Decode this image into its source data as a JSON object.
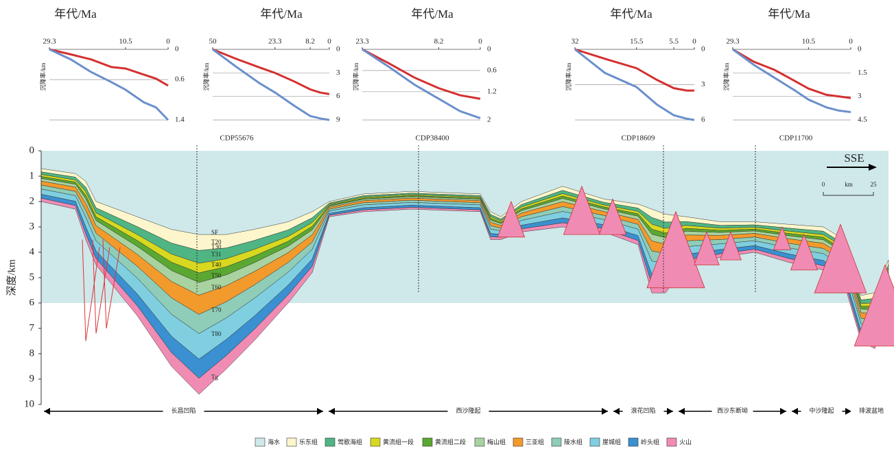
{
  "chart_data": [
    {
      "type": "line",
      "title": "年代/Ma",
      "y_label": "沉降率/km",
      "xlim": [
        29.3,
        0
      ],
      "xticks": [
        29.3,
        10.5,
        0
      ],
      "ylim": [
        0,
        1.4
      ],
      "yticks": [
        0,
        0.6,
        1.4
      ],
      "x": [
        29.3,
        24,
        19,
        14,
        10.5,
        6,
        3,
        0
      ],
      "series": [
        {
          "color": "#d43030",
          "values": [
            0,
            0.1,
            0.2,
            0.35,
            0.38,
            0.5,
            0.58,
            0.72
          ]
        },
        {
          "color": "#6a8fcc",
          "values": [
            0,
            0.2,
            0.45,
            0.65,
            0.8,
            1.05,
            1.15,
            1.4
          ]
        }
      ]
    },
    {
      "type": "line",
      "title": "年代/Ma",
      "y_label": "沉降率/km",
      "xlim": [
        50,
        0
      ],
      "xticks": [
        50,
        23.3,
        8.2,
        0
      ],
      "ylim": [
        0,
        9
      ],
      "yticks": [
        0,
        3,
        6,
        9
      ],
      "x": [
        50,
        40,
        30,
        23.3,
        15,
        8.2,
        4,
        0
      ],
      "series": [
        {
          "color": "#d43030",
          "values": [
            0,
            1.2,
            2.3,
            3,
            4.1,
            5.1,
            5.5,
            5.7
          ]
        },
        {
          "color": "#6a8fcc",
          "values": [
            0,
            2.2,
            4.3,
            5.5,
            7.2,
            8.5,
            8.8,
            9
          ]
        }
      ]
    },
    {
      "type": "line",
      "title": "年代/Ma",
      "y_label": "沉降率/km",
      "xlim": [
        23.3,
        0
      ],
      "xticks": [
        23.3,
        8.2,
        0
      ],
      "ylim": [
        0,
        2
      ],
      "yticks": [
        0,
        0.6,
        1.2,
        2
      ],
      "x": [
        23.3,
        18,
        13,
        8.2,
        4,
        0
      ],
      "series": [
        {
          "color": "#d43030",
          "values": [
            0,
            0.4,
            0.8,
            1.1,
            1.3,
            1.4
          ]
        },
        {
          "color": "#6a8fcc",
          "values": [
            0,
            0.5,
            1.0,
            1.4,
            1.75,
            1.95
          ]
        }
      ]
    },
    {
      "type": "line",
      "title": "年代/Ma",
      "y_label": "沉降率/km",
      "xlim": [
        32,
        0
      ],
      "xticks": [
        32,
        15.5,
        5.5,
        0
      ],
      "ylim": [
        0,
        6
      ],
      "yticks": [
        0,
        3,
        6
      ],
      "x": [
        32,
        24,
        15.5,
        10,
        5.5,
        2,
        0
      ],
      "series": [
        {
          "color": "#d43030",
          "values": [
            0,
            0.8,
            1.6,
            2.6,
            3.3,
            3.5,
            3.5
          ]
        },
        {
          "color": "#6a8fcc",
          "values": [
            0,
            2,
            3.2,
            4.7,
            5.6,
            5.9,
            6
          ]
        }
      ]
    },
    {
      "type": "line",
      "title": "年代/Ma",
      "y_label": "沉降率/km",
      "xlim": [
        29.3,
        0
      ],
      "xticks": [
        29.3,
        10.5,
        0
      ],
      "ylim": [
        0,
        4.5
      ],
      "yticks": [
        0,
        1.5,
        3,
        4.5
      ],
      "x": [
        29.3,
        24,
        19,
        14,
        10.5,
        6,
        3,
        0
      ],
      "series": [
        {
          "color": "#d43030",
          "values": [
            0,
            0.8,
            1.3,
            2.0,
            2.5,
            2.9,
            3.0,
            3.1
          ]
        },
        {
          "color": "#6a8fcc",
          "values": [
            0,
            1.0,
            1.8,
            2.6,
            3.2,
            3.7,
            3.9,
            4.0
          ]
        }
      ]
    },
    {
      "type": "section",
      "y_label": "深度/km",
      "ylim": [
        0,
        10
      ],
      "yticks": [
        0,
        1,
        2,
        3,
        4,
        5,
        6,
        7,
        8,
        9,
        10
      ],
      "cdp_labels": [
        "CDP55676",
        "CDP38400",
        "CDP18609",
        "CDP11700"
      ],
      "direction": "SSE",
      "scale": [
        "0",
        "km",
        "25"
      ],
      "horizons": [
        "SF",
        "T20",
        "T30",
        "T31",
        "T40",
        "T50",
        "T60",
        "T70",
        "T80",
        "Tg"
      ],
      "regions": [
        "长昌凹陷",
        "西沙隆起",
        "浪花凹陷",
        "西沙东断坳",
        "中沙隆起",
        "排波盆地"
      ],
      "legend": [
        {
          "name": "海水",
          "color": "#cfe8ea"
        },
        {
          "name": "乐东组",
          "color": "#fdf6cc"
        },
        {
          "name": "莺歌海组",
          "color": "#4fb584"
        },
        {
          "name": "黄流组一段",
          "color": "#d8d820"
        },
        {
          "name": "黄流组二段",
          "color": "#5aa832"
        },
        {
          "name": "梅山组",
          "color": "#a8d3a0"
        },
        {
          "name": "三亚组",
          "color": "#f39a2c"
        },
        {
          "name": "陵水组",
          "color": "#8fcdb8"
        },
        {
          "name": "崖城组",
          "color": "#7fcfe0"
        },
        {
          "name": "岭头组",
          "color": "#3a90d0"
        },
        {
          "name": "火山",
          "color": "#f08cb4"
        }
      ]
    }
  ]
}
